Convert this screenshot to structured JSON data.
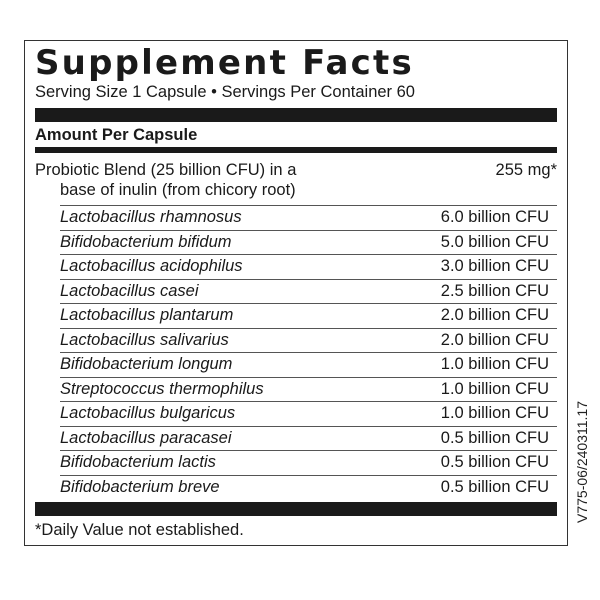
{
  "title": "Supplement Facts",
  "serving": "Serving Size 1 Capsule • Servings Per Container 60",
  "amount_header": "Amount Per Capsule",
  "blend": {
    "line1": "Probiotic Blend (25 billion CFU) in a",
    "line2": "base of inulin (from chicory root)",
    "amount": "255 mg*"
  },
  "ingredients": [
    {
      "name": "Lactobacillus rhamnosus",
      "amount": "6.0 billion CFU"
    },
    {
      "name": "Bifidobacterium bifidum",
      "amount": "5.0 billion CFU"
    },
    {
      "name": "Lactobacillus acidophilus",
      "amount": "3.0 billion CFU"
    },
    {
      "name": "Lactobacillus casei",
      "amount": "2.5 billion CFU"
    },
    {
      "name": "Lactobacillus plantarum",
      "amount": "2.0 billion CFU"
    },
    {
      "name": "Lactobacillus salivarius",
      "amount": "2.0 billion CFU"
    },
    {
      "name": "Bifidobacterium longum",
      "amount": "1.0 billion CFU"
    },
    {
      "name": "Streptococcus thermophilus",
      "amount": "1.0 billion CFU"
    },
    {
      "name": "Lactobacillus bulgaricus",
      "amount": "1.0 billion CFU"
    },
    {
      "name": "Lactobacillus paracasei",
      "amount": "0.5 billion CFU"
    },
    {
      "name": "Bifidobacterium lactis",
      "amount": "0.5 billion CFU"
    },
    {
      "name": "Bifidobacterium breve",
      "amount": "0.5 billion CFU"
    }
  ],
  "footnote": "*Daily Value not established.",
  "code": "V775-06/240311.17"
}
